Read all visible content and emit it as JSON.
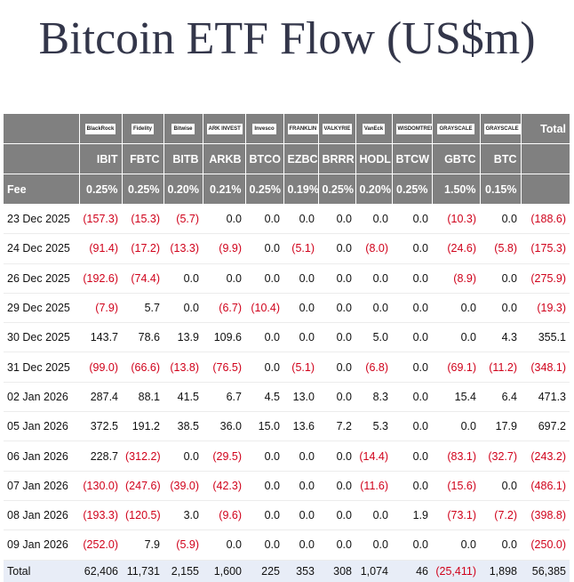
{
  "title": "Bitcoin ETF Flow (US$m)",
  "table": {
    "logos": [
      "BlackRock",
      "Fidelity",
      "Bitwise",
      "ARK INVEST",
      "Invesco",
      "FRANKLIN TEMPLETON",
      "VALKYRIE",
      "VanEck",
      "WISDOMTREE",
      "GRAYSCALE",
      "GRAYSCALE"
    ],
    "total_header": "Total",
    "tickers": [
      "IBIT",
      "FBTC",
      "BITB",
      "ARKB",
      "BTCO",
      "EZBC",
      "BRRR",
      "HODL",
      "BTCW",
      "GBTC",
      "BTC"
    ],
    "fee_label": "Fee",
    "fees": [
      "0.25%",
      "0.25%",
      "0.20%",
      "0.21%",
      "0.25%",
      "0.19%",
      "0.25%",
      "0.20%",
      "0.25%",
      "1.50%",
      "0.15%"
    ],
    "rows": [
      [
        "23 Dec 2025",
        "(157.3)",
        "(15.3)",
        "(5.7)",
        "0.0",
        "0.0",
        "0.0",
        "0.0",
        "0.0",
        "0.0",
        "(10.3)",
        "0.0",
        "(188.6)"
      ],
      [
        "24 Dec 2025",
        "(91.4)",
        "(17.2)",
        "(13.3)",
        "(9.9)",
        "0.0",
        "(5.1)",
        "0.0",
        "(8.0)",
        "0.0",
        "(24.6)",
        "(5.8)",
        "(175.3)"
      ],
      [
        "26 Dec 2025",
        "(192.6)",
        "(74.4)",
        "0.0",
        "0.0",
        "0.0",
        "0.0",
        "0.0",
        "0.0",
        "0.0",
        "(8.9)",
        "0.0",
        "(275.9)"
      ],
      [
        "29 Dec 2025",
        "(7.9)",
        "5.7",
        "0.0",
        "(6.7)",
        "(10.4)",
        "0.0",
        "0.0",
        "0.0",
        "0.0",
        "0.0",
        "0.0",
        "(19.3)"
      ],
      [
        "30 Dec 2025",
        "143.7",
        "78.6",
        "13.9",
        "109.6",
        "0.0",
        "0.0",
        "0.0",
        "5.0",
        "0.0",
        "0.0",
        "4.3",
        "355.1"
      ],
      [
        "31 Dec 2025",
        "(99.0)",
        "(66.6)",
        "(13.8)",
        "(76.5)",
        "0.0",
        "(5.1)",
        "0.0",
        "(6.8)",
        "0.0",
        "(69.1)",
        "(11.2)",
        "(348.1)"
      ],
      [
        "02 Jan 2026",
        "287.4",
        "88.1",
        "41.5",
        "6.7",
        "4.5",
        "13.0",
        "0.0",
        "8.3",
        "0.0",
        "15.4",
        "6.4",
        "471.3"
      ],
      [
        "05 Jan 2026",
        "372.5",
        "191.2",
        "38.5",
        "36.0",
        "15.0",
        "13.6",
        "7.2",
        "5.3",
        "0.0",
        "0.0",
        "17.9",
        "697.2"
      ],
      [
        "06 Jan 2026",
        "228.7",
        "(312.2)",
        "0.0",
        "(29.5)",
        "0.0",
        "0.0",
        "0.0",
        "(14.4)",
        "0.0",
        "(83.1)",
        "(32.7)",
        "(243.2)"
      ],
      [
        "07 Jan 2026",
        "(130.0)",
        "(247.6)",
        "(39.0)",
        "(42.3)",
        "0.0",
        "0.0",
        "0.0",
        "(11.6)",
        "0.0",
        "(15.6)",
        "0.0",
        "(486.1)"
      ],
      [
        "08 Jan 2026",
        "(193.3)",
        "(120.5)",
        "3.0",
        "(9.6)",
        "0.0",
        "0.0",
        "0.0",
        "0.0",
        "1.9",
        "(73.1)",
        "(7.2)",
        "(398.8)"
      ],
      [
        "09 Jan 2026",
        "(252.0)",
        "7.9",
        "(5.9)",
        "0.0",
        "0.0",
        "0.0",
        "0.0",
        "0.0",
        "0.0",
        "0.0",
        "0.0",
        "(250.0)"
      ]
    ],
    "total_row": [
      "Total",
      "62,406",
      "11,731",
      "2,155",
      "1,600",
      "225",
      "353",
      "308",
      "1,074",
      "46",
      "(25,411)",
      "1,898",
      "56,385"
    ]
  }
}
